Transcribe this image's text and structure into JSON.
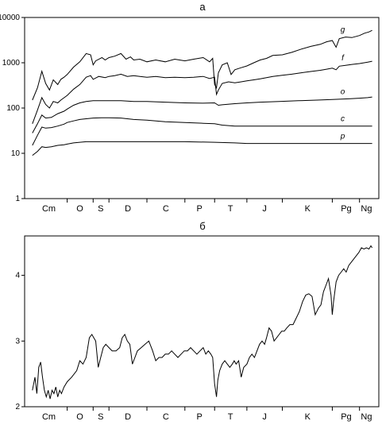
{
  "chart_data": [
    {
      "type": "line",
      "title": "а",
      "yscale": "log",
      "ylim": [
        1,
        10000
      ],
      "y_ticks": [
        "1",
        "10",
        "100",
        "1000",
        "10000"
      ],
      "xlim": [
        541,
        0
      ],
      "x_ticks": [
        {
          "label": "Cm",
          "at": 514
        },
        {
          "label": "O",
          "at": 465
        },
        {
          "label": "S",
          "at": 432
        },
        {
          "label": "D",
          "at": 389
        },
        {
          "label": "C",
          "at": 329
        },
        {
          "label": "P",
          "at": 276
        },
        {
          "label": "T",
          "at": 227
        },
        {
          "label": "J",
          "at": 173
        },
        {
          "label": "K",
          "at": 105
        },
        {
          "label": "Pg",
          "at": 44
        },
        {
          "label": "Ng",
          "at": 12
        }
      ],
      "boundaries": [
        541,
        485,
        444,
        419,
        359,
        299,
        252,
        201,
        145,
        66,
        23,
        0
      ],
      "grid": false,
      "series": [
        {
          "name": "g",
          "x": [
            540,
            532,
            525,
            519,
            513,
            507,
            500,
            495,
            490,
            485,
            475,
            465,
            455,
            448,
            444,
            440,
            430,
            425,
            419,
            410,
            400,
            392,
            385,
            380,
            370,
            359,
            345,
            330,
            315,
            299,
            285,
            270,
            260,
            255,
            252,
            249,
            246,
            240,
            232,
            226,
            220,
            210,
            201,
            190,
            180,
            170,
            160,
            145,
            130,
            115,
            100,
            85,
            75,
            66,
            60,
            55,
            45,
            35,
            23,
            15,
            8,
            3
          ],
          "values": [
            150,
            280,
            650,
            350,
            250,
            420,
            330,
            430,
            480,
            550,
            800,
            1050,
            1600,
            1500,
            900,
            1100,
            1300,
            1150,
            1300,
            1400,
            1600,
            1200,
            1350,
            1150,
            1200,
            1050,
            1150,
            1050,
            1200,
            1100,
            1200,
            1300,
            1050,
            1250,
            330,
            280,
            600,
            900,
            1000,
            550,
            700,
            780,
            850,
            1000,
            1150,
            1250,
            1450,
            1500,
            1700,
            2000,
            2300,
            2550,
            2900,
            3100,
            2200,
            3400,
            3700,
            3600,
            4000,
            4500,
            4800,
            5200
          ]
        },
        {
          "name": "f",
          "x": [
            540,
            532,
            525,
            519,
            513,
            507,
            500,
            495,
            485,
            475,
            465,
            455,
            448,
            444,
            435,
            425,
            419,
            410,
            400,
            390,
            380,
            370,
            359,
            345,
            330,
            315,
            299,
            285,
            270,
            260,
            252,
            249,
            246,
            240,
            230,
            220,
            210,
            201,
            190,
            180,
            170,
            160,
            145,
            130,
            115,
            100,
            85,
            75,
            66,
            60,
            55,
            45,
            35,
            23,
            10,
            3
          ],
          "values": [
            45,
            90,
            170,
            120,
            100,
            140,
            130,
            150,
            190,
            260,
            330,
            480,
            520,
            430,
            500,
            470,
            500,
            520,
            560,
            500,
            520,
            500,
            480,
            500,
            470,
            480,
            470,
            480,
            500,
            450,
            480,
            200,
            250,
            350,
            380,
            360,
            380,
            400,
            420,
            440,
            470,
            500,
            530,
            560,
            600,
            640,
            680,
            720,
            760,
            700,
            840,
            880,
            920,
            960,
            1030,
            1080
          ]
        },
        {
          "name": "o",
          "x": [
            540,
            532,
            525,
            519,
            510,
            500,
            490,
            485,
            475,
            465,
            455,
            444,
            430,
            419,
            400,
            380,
            359,
            330,
            299,
            270,
            252,
            246,
            240,
            220,
            201,
            180,
            150,
            120,
            90,
            66,
            40,
            23,
            10,
            3
          ],
          "values": [
            28,
            45,
            70,
            60,
            62,
            75,
            85,
            95,
            115,
            130,
            140,
            145,
            145,
            145,
            145,
            140,
            140,
            135,
            130,
            128,
            130,
            115,
            118,
            125,
            130,
            135,
            140,
            145,
            150,
            155,
            160,
            165,
            170,
            175
          ]
        },
        {
          "name": "c",
          "x": [
            540,
            532,
            525,
            519,
            510,
            500,
            490,
            485,
            475,
            465,
            455,
            444,
            430,
            419,
            400,
            380,
            359,
            330,
            299,
            270,
            252,
            240,
            220,
            201,
            180,
            150,
            120,
            90,
            66,
            40,
            23,
            3
          ],
          "values": [
            15,
            25,
            38,
            36,
            37,
            40,
            44,
            48,
            52,
            56,
            58,
            60,
            61,
            61,
            60,
            56,
            54,
            50,
            48,
            46,
            45,
            42,
            40,
            40,
            40,
            40,
            40,
            40,
            40,
            40,
            40,
            40
          ]
        },
        {
          "name": "p",
          "x": [
            540,
            532,
            525,
            519,
            510,
            500,
            490,
            485,
            475,
            465,
            455,
            444,
            419,
            380,
            359,
            299,
            252,
            220,
            201,
            150,
            100,
            66,
            23,
            3
          ],
          "values": [
            9,
            11,
            14,
            13.5,
            14,
            15,
            15.5,
            16,
            17,
            17.5,
            18,
            18,
            18,
            18,
            18,
            18,
            17.5,
            17,
            16.5,
            16.5,
            16.5,
            16.5,
            16.5,
            16.5
          ]
        }
      ]
    },
    {
      "type": "line",
      "title": "б",
      "ylim": [
        2,
        4.6
      ],
      "y_ticks": [
        "2",
        "3",
        "4"
      ],
      "xlim": [
        541,
        0
      ],
      "x_ticks": [
        {
          "label": "Cm",
          "at": 514
        },
        {
          "label": "O",
          "at": 465
        },
        {
          "label": "S",
          "at": 432
        },
        {
          "label": "D",
          "at": 389
        },
        {
          "label": "C",
          "at": 329
        },
        {
          "label": "P",
          "at": 276
        },
        {
          "label": "T",
          "at": 227
        },
        {
          "label": "J",
          "at": 173
        },
        {
          "label": "K",
          "at": 105
        },
        {
          "label": "Pg",
          "at": 44
        },
        {
          "label": "Ng",
          "at": 12
        }
      ],
      "boundaries": [
        541,
        485,
        444,
        419,
        359,
        299,
        252,
        201,
        145,
        66,
        23,
        0
      ],
      "grid": false,
      "series": [
        {
          "name": "",
          "x": [
            540,
            536,
            533,
            530,
            527,
            524,
            521,
            518,
            515,
            512,
            509,
            506,
            503,
            500,
            497,
            494,
            490,
            485,
            478,
            470,
            465,
            460,
            455,
            450,
            446,
            443,
            440,
            436,
            432,
            428,
            424,
            419,
            414,
            408,
            402,
            398,
            394,
            390,
            386,
            382,
            378,
            374,
            368,
            362,
            356,
            350,
            345,
            340,
            335,
            330,
            325,
            320,
            315,
            310,
            305,
            300,
            295,
            290,
            285,
            280,
            275,
            270,
            266,
            262,
            258,
            255,
            252,
            249,
            247,
            244,
            240,
            236,
            232,
            228,
            224,
            221,
            218,
            214,
            210,
            206,
            201,
            197,
            193,
            189,
            185,
            181,
            177,
            173,
            170,
            166,
            162,
            158,
            154,
            150,
            146,
            142,
            138,
            133,
            128,
            123,
            118,
            113,
            108,
            103,
            98,
            93,
            88,
            84,
            80,
            76,
            72,
            68,
            66,
            64,
            60,
            56,
            52,
            48,
            44,
            40,
            36,
            32,
            28,
            24,
            20,
            16,
            12,
            8,
            5,
            3
          ],
          "values": [
            2.25,
            2.45,
            2.2,
            2.6,
            2.68,
            2.45,
            2.25,
            2.15,
            2.25,
            2.12,
            2.25,
            2.2,
            2.3,
            2.15,
            2.25,
            2.2,
            2.3,
            2.38,
            2.45,
            2.55,
            2.7,
            2.65,
            2.75,
            3.05,
            3.1,
            3.05,
            3.0,
            2.6,
            2.75,
            2.9,
            2.95,
            2.9,
            2.85,
            2.85,
            2.9,
            3.05,
            3.1,
            3.0,
            2.95,
            2.65,
            2.75,
            2.85,
            2.9,
            2.95,
            3.0,
            2.85,
            2.7,
            2.75,
            2.75,
            2.8,
            2.8,
            2.85,
            2.8,
            2.75,
            2.8,
            2.85,
            2.85,
            2.9,
            2.85,
            2.8,
            2.85,
            2.9,
            2.8,
            2.85,
            2.8,
            2.75,
            2.35,
            2.15,
            2.4,
            2.55,
            2.65,
            2.7,
            2.65,
            2.6,
            2.65,
            2.7,
            2.65,
            2.7,
            2.45,
            2.6,
            2.65,
            2.75,
            2.8,
            2.75,
            2.85,
            2.95,
            3.0,
            2.95,
            3.05,
            3.2,
            3.15,
            3.0,
            3.05,
            3.1,
            3.15,
            3.15,
            3.2,
            3.25,
            3.25,
            3.35,
            3.45,
            3.6,
            3.7,
            3.72,
            3.68,
            3.4,
            3.5,
            3.55,
            3.75,
            3.85,
            3.95,
            3.7,
            3.4,
            3.6,
            3.9,
            4.0,
            4.05,
            4.1,
            4.05,
            4.15,
            4.2,
            4.25,
            4.3,
            4.35,
            4.42,
            4.4,
            4.42,
            4.4,
            4.45,
            4.42
          ]
        }
      ]
    }
  ]
}
